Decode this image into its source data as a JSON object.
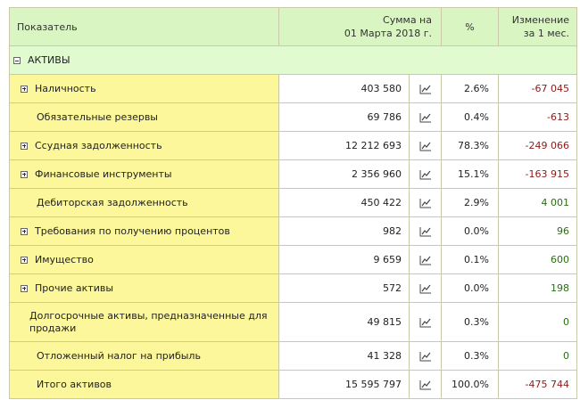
{
  "header": {
    "col_name": "Показатель",
    "col_sum_line1": "Сумма на",
    "col_sum_line2": "01 Марта 2018 г.",
    "col_pct": "%",
    "col_change_line1": "Изменение",
    "col_change_line2": "за 1 мес."
  },
  "section": {
    "label": "АКТИВЫ",
    "icon": "collapse-minus-icon"
  },
  "rows": [
    {
      "label": "Наличность",
      "expandable": true,
      "sum": "403 580",
      "pct": "2.6%",
      "change": "-67 045",
      "trend": "neg"
    },
    {
      "label": "Обязательные резервы",
      "expandable": false,
      "sum": "69 786",
      "pct": "0.4%",
      "change": "-613",
      "trend": "neg"
    },
    {
      "label": "Ссудная задолженность",
      "expandable": true,
      "sum": "12 212 693",
      "pct": "78.3%",
      "change": "-249 066",
      "trend": "neg"
    },
    {
      "label": "Финансовые инструменты",
      "expandable": true,
      "sum": "2 356 960",
      "pct": "15.1%",
      "change": "-163 915",
      "trend": "neg"
    },
    {
      "label": "Дебиторская задолженность",
      "expandable": false,
      "sum": "450 422",
      "pct": "2.9%",
      "change": "4 001",
      "trend": "pos"
    },
    {
      "label": "Требования по получению процентов",
      "expandable": true,
      "sum": "982",
      "pct": "0.0%",
      "change": "96",
      "trend": "pos"
    },
    {
      "label": "Имущество",
      "expandable": true,
      "sum": "9 659",
      "pct": "0.1%",
      "change": "600",
      "trend": "pos"
    },
    {
      "label": "Прочие активы",
      "expandable": true,
      "sum": "572",
      "pct": "0.0%",
      "change": "198",
      "trend": "pos"
    },
    {
      "label": "Долгосрочные активы, предназначенные для продажи",
      "expandable": false,
      "sum": "49 815",
      "pct": "0.3%",
      "change": "0",
      "trend": "pos",
      "tall": true
    },
    {
      "label": "Отложенный налог на прибыль",
      "expandable": false,
      "sum": "41 328",
      "pct": "0.3%",
      "change": "0",
      "trend": "pos"
    },
    {
      "label": "Итого активов",
      "expandable": false,
      "sum": "15 595 797",
      "pct": "100.0%",
      "change": "-475 744",
      "trend": "neg"
    }
  ],
  "icons": {
    "chart": "line-chart-icon",
    "expand": "expand-plus-icon"
  },
  "colors": {
    "header_bg": "#d9f5c1",
    "name_bg": "#fbf79a",
    "negative": "#8b1a1a",
    "positive": "#2a6f12"
  }
}
